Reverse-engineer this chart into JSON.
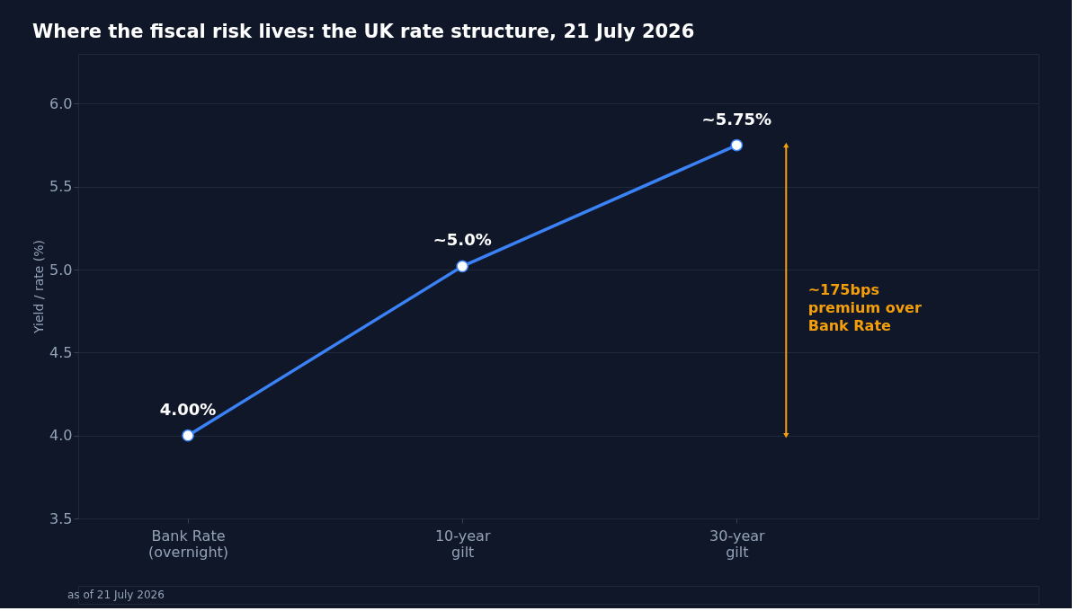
{
  "chart_data": {
    "type": "line",
    "title": "Where the fiscal risk lives: the UK rate structure, 21 July 2026",
    "categories": [
      "Bank Rate\n(overnight)",
      "10-year\ngilt",
      "30-year\ngilt"
    ],
    "series": [
      {
        "color": "#3b82f6",
        "values": [
          4.0,
          5.02,
          5.75
        ],
        "value_labels": [
          "4.00%",
          "~5.0%",
          "~5.75%"
        ]
      }
    ],
    "ylabel": "Yield / rate (%)",
    "ylim": [
      3.5,
      6.3
    ],
    "yticks": [
      {
        "value": 3.5,
        "label": "3.5"
      },
      {
        "value": 4.0,
        "label": "4.0"
      },
      {
        "value": 4.5,
        "label": "4.5"
      },
      {
        "value": 5.0,
        "label": "5.0"
      },
      {
        "value": 5.5,
        "label": "5.5"
      },
      {
        "value": 6.0,
        "label": "6.0"
      }
    ],
    "grid": "y",
    "marker": "circle",
    "line_style": "solid",
    "annotations": [
      "~175bps\npremium over\nBank Rate",
      "as of 21 July 2026"
    ]
  }
}
